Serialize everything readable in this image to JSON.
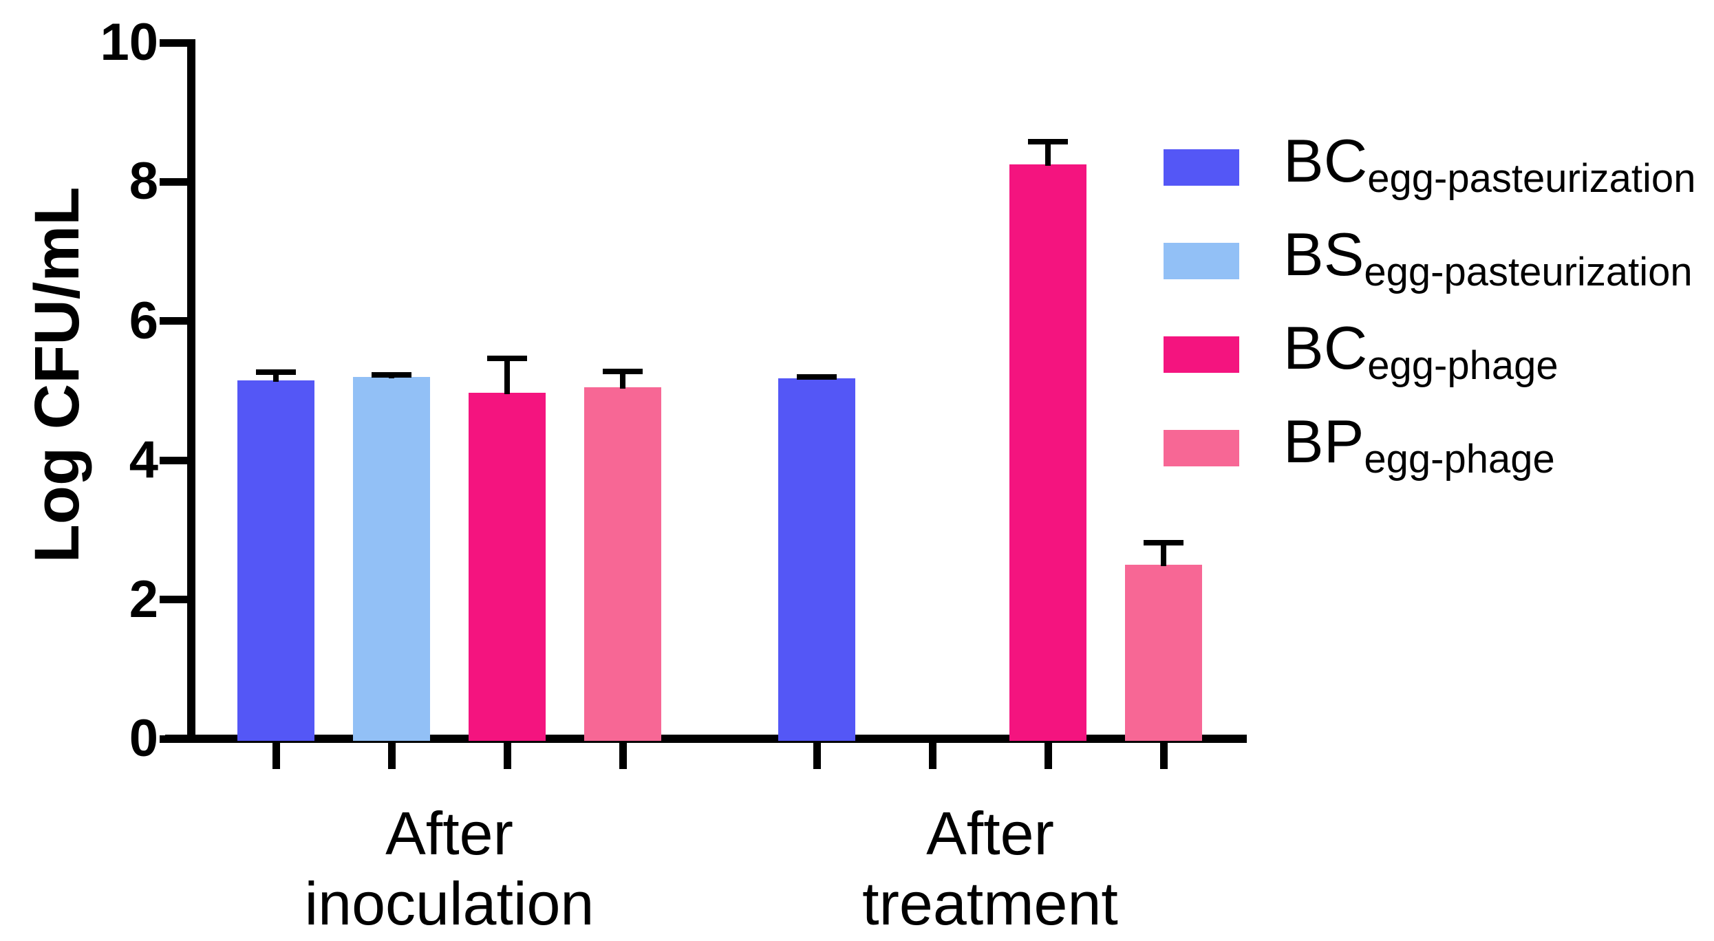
{
  "figure": {
    "background": "#ffffff",
    "text_color": "#000000"
  },
  "chart_data": {
    "type": "bar",
    "title": "",
    "xlabel": "",
    "ylabel": "Log CFU/mL",
    "ylim": [
      0,
      10
    ],
    "yticks": [
      0,
      2,
      4,
      6,
      8,
      10
    ],
    "grid": false,
    "legend_position": "right",
    "error_bars": "upper",
    "categories": [
      "After\ninoculation",
      "After\ntreatment"
    ],
    "series": [
      {
        "name_main": "BC",
        "name_sub": "egg-pasteurization",
        "color": "#5457F6",
        "values": [
          5.15,
          5.18
        ],
        "errors": [
          0.12,
          0.02
        ]
      },
      {
        "name_main": "BS",
        "name_sub": "egg-pasteurization",
        "color": "#92C0F6",
        "values": [
          5.2,
          null
        ],
        "errors": [
          0.03,
          null
        ]
      },
      {
        "name_main": "BC",
        "name_sub": "egg-phage",
        "color": "#F4147F",
        "values": [
          4.97,
          8.25
        ],
        "errors": [
          0.49,
          0.33
        ]
      },
      {
        "name_main": "BP",
        "name_sub": "egg-phage",
        "color": "#F76795",
        "values": [
          5.05,
          2.5
        ],
        "errors": [
          0.23,
          0.32
        ]
      }
    ]
  }
}
